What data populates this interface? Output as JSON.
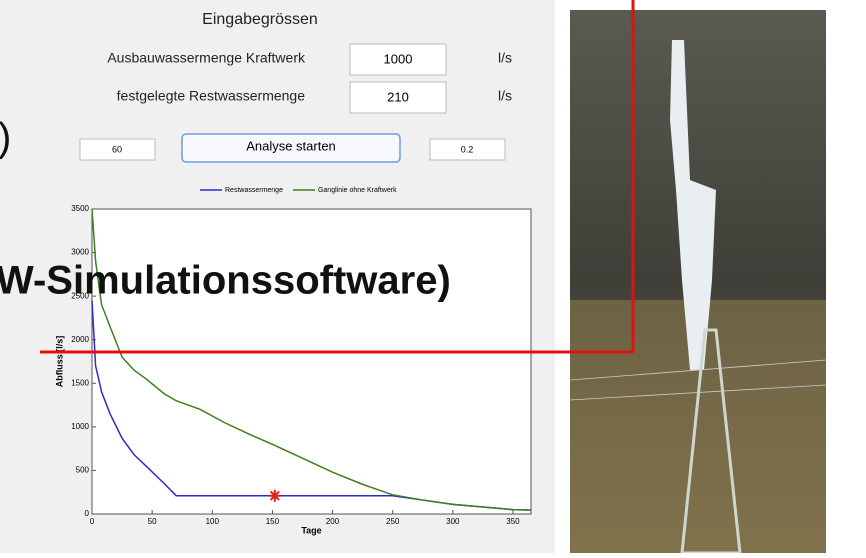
{
  "form": {
    "title": "Eingabegrössen",
    "fields": [
      {
        "label": "Ausbauwassermenge Kraftwerk",
        "value": "1000",
        "unit": "l/s"
      },
      {
        "label": "festgelegte Restwassermenge",
        "value": "210",
        "unit": "l/s"
      }
    ],
    "left_box": "60",
    "button": "Analyse starten",
    "right_box": "0.2"
  },
  "overlay": {
    "paren": ")",
    "caption": "W-Simulationssoftware)"
  },
  "chart_data": {
    "type": "line",
    "xlabel": "Tage",
    "ylabel": "Abfluss [l/s]",
    "x": [
      0,
      3,
      8,
      15,
      25,
      35,
      45,
      60,
      70,
      90,
      110,
      130,
      150,
      175,
      200,
      225,
      250,
      275,
      300,
      325,
      350,
      365
    ],
    "series": [
      {
        "name": "Restwassermenge",
        "color": "#2b2bd0",
        "values": [
          2450,
          1700,
          1400,
          1150,
          870,
          680,
          550,
          350,
          210,
          210,
          210,
          210,
          210,
          210,
          210,
          210,
          210,
          160,
          110,
          80,
          50,
          45
        ]
      },
      {
        "name": "Ganglinie ohne Kraftwerk",
        "color": "#3f7f1f",
        "values": [
          3500,
          2900,
          2400,
          2150,
          1800,
          1650,
          1550,
          1380,
          1300,
          1200,
          1050,
          920,
          800,
          640,
          480,
          340,
          220,
          160,
          110,
          80,
          50,
          45
        ]
      }
    ],
    "marker": {
      "x": 152,
      "y": 210,
      "color": "#e0201a"
    },
    "xlim": [
      0,
      365
    ],
    "xticks": [
      0,
      50,
      100,
      150,
      200,
      250,
      300,
      350
    ],
    "ylim": [
      0,
      3500
    ],
    "yticks": [
      0,
      500,
      1000,
      1500,
      2000,
      2500,
      3000,
      3500
    ],
    "legend": "top"
  }
}
